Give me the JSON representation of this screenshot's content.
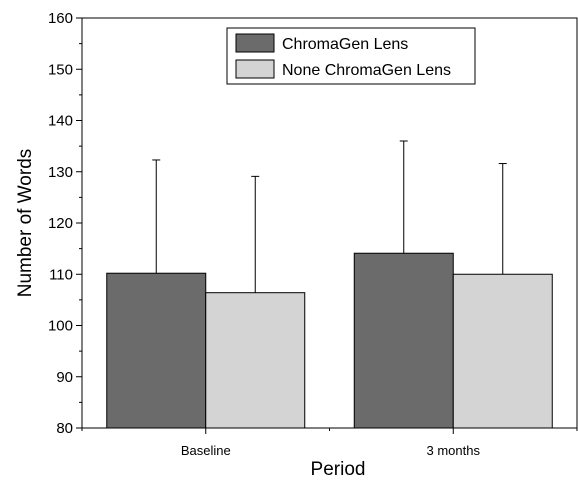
{
  "chart_data": {
    "type": "bar",
    "title": "",
    "xlabel": "Period",
    "ylabel": "Number of Words",
    "categories": [
      "Baseline",
      "3 months"
    ],
    "ylim": [
      80,
      160
    ],
    "yticks": [
      "80",
      "90",
      "100",
      "110",
      "120",
      "130",
      "140",
      "150",
      "160"
    ],
    "grid": false,
    "legend_position": "top-right",
    "series": [
      {
        "name": "ChromaGen Lens",
        "color": "#6b6b6b",
        "values": [
          110.2,
          114.1
        ],
        "error_upper": [
          22.1,
          21.9
        ]
      },
      {
        "name": "None ChromaGen Lens",
        "color": "#d4d4d4",
        "values": [
          106.4,
          110.0
        ],
        "error_upper": [
          22.7,
          21.6
        ]
      }
    ]
  }
}
